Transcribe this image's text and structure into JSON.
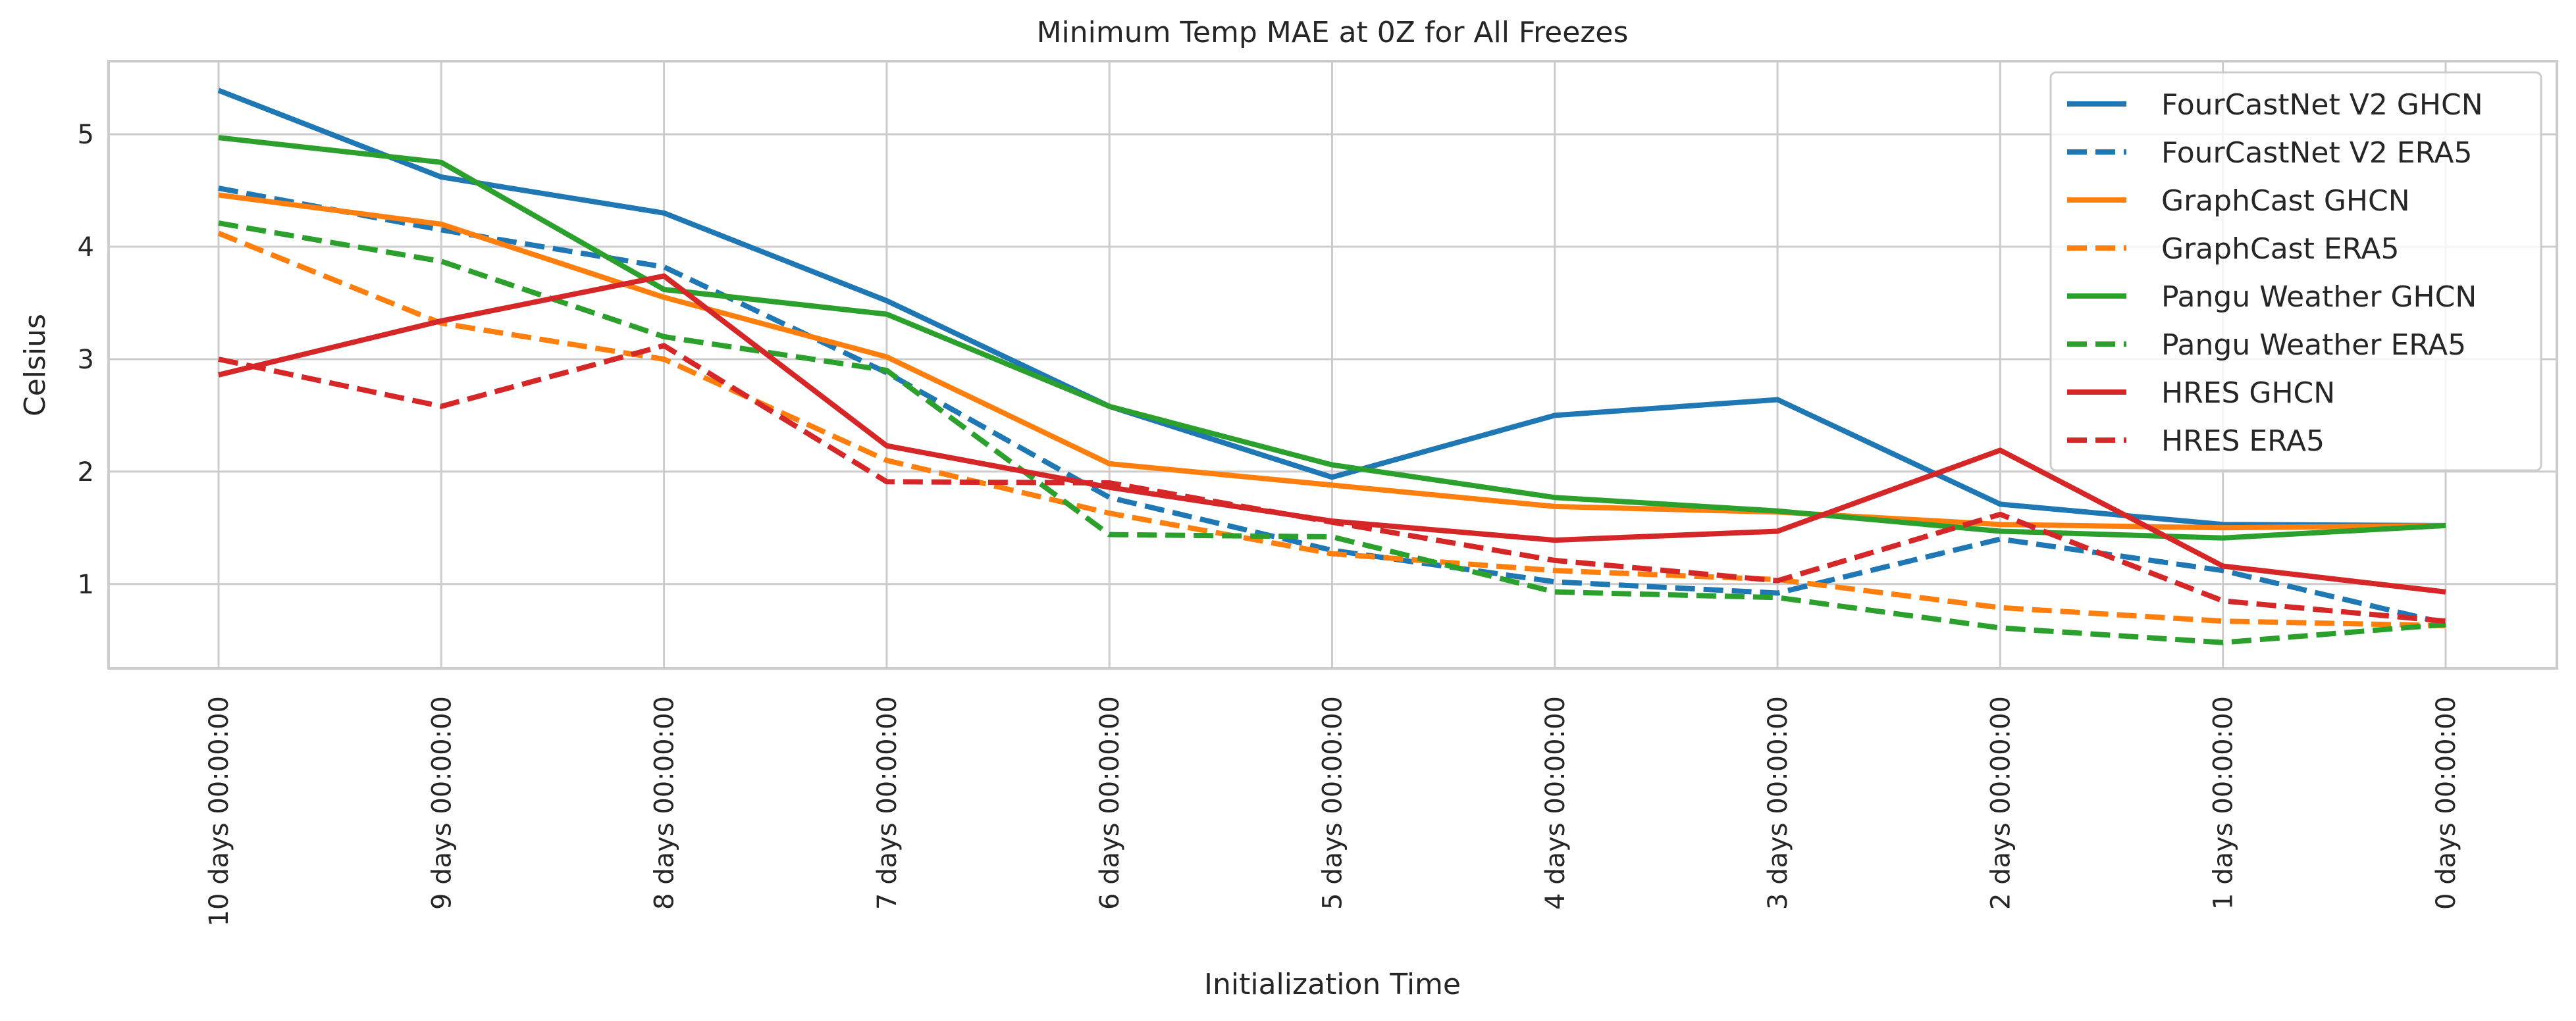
{
  "chart_data": {
    "type": "line",
    "title": "Minimum Temp MAE at 0Z for All Freezes",
    "xlabel": "Initialization Time",
    "ylabel": "Celsius",
    "categories": [
      "10 days 00:00:00",
      "9 days 00:00:00",
      "8 days 00:00:00",
      "7 days 00:00:00",
      "6 days 00:00:00",
      "5 days 00:00:00",
      "4 days 00:00:00",
      "3 days 00:00:00",
      "2 days 00:00:00",
      "1 days 00:00:00",
      "0 days 00:00:00"
    ],
    "yticks": [
      1,
      2,
      3,
      4,
      5
    ],
    "ylim": [
      0.25,
      5.65
    ],
    "grid": true,
    "legend_position": "top-right",
    "series": [
      {
        "name": "FourCastNet V2 GHCN",
        "color": "#1f77b4",
        "dash": "solid",
        "values": [
          5.39,
          4.62,
          4.3,
          3.52,
          2.58,
          1.95,
          2.5,
          2.64,
          1.71,
          1.53,
          1.52
        ]
      },
      {
        "name": "FourCastNet V2 ERA5",
        "color": "#1f77b4",
        "dash": "dashed",
        "values": [
          4.52,
          4.15,
          3.82,
          2.88,
          1.77,
          1.3,
          1.02,
          0.92,
          1.4,
          1.12,
          0.65
        ]
      },
      {
        "name": "GraphCast GHCN",
        "color": "#ff7f0e",
        "dash": "solid",
        "values": [
          4.46,
          4.2,
          3.55,
          3.02,
          2.07,
          1.88,
          1.69,
          1.64,
          1.53,
          1.5,
          1.52
        ]
      },
      {
        "name": "GraphCast ERA5",
        "color": "#ff7f0e",
        "dash": "dashed",
        "values": [
          4.12,
          3.32,
          3.0,
          2.1,
          1.63,
          1.27,
          1.12,
          1.04,
          0.79,
          0.67,
          0.63
        ]
      },
      {
        "name": "Pangu Weather GHCN",
        "color": "#2ca02c",
        "dash": "solid",
        "values": [
          4.97,
          4.75,
          3.62,
          3.4,
          2.58,
          2.06,
          1.77,
          1.65,
          1.47,
          1.41,
          1.52
        ]
      },
      {
        "name": "Pangu Weather ERA5",
        "color": "#2ca02c",
        "dash": "dashed",
        "values": [
          4.21,
          3.87,
          3.2,
          2.9,
          1.44,
          1.42,
          0.93,
          0.88,
          0.61,
          0.48,
          0.64
        ]
      },
      {
        "name": "HRES GHCN",
        "color": "#d62728",
        "dash": "solid",
        "values": [
          2.86,
          3.34,
          3.74,
          2.23,
          1.86,
          1.56,
          1.39,
          1.47,
          2.19,
          1.16,
          0.93
        ]
      },
      {
        "name": "HRES ERA5",
        "color": "#d62728",
        "dash": "dashed",
        "values": [
          3.0,
          2.58,
          3.12,
          1.91,
          1.9,
          1.55,
          1.21,
          1.03,
          1.62,
          0.85,
          0.67
        ]
      }
    ]
  }
}
